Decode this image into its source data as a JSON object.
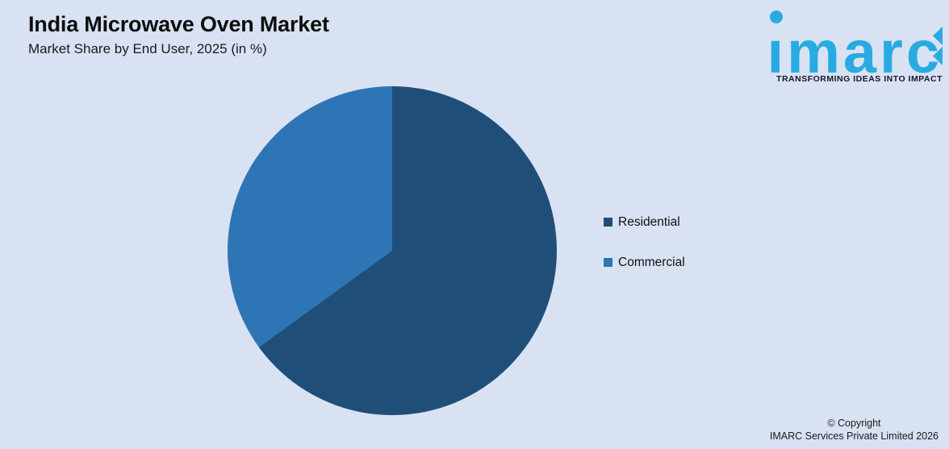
{
  "page": {
    "background_color": "#D9E2F2"
  },
  "header": {
    "title": "India Microwave Oven Market",
    "subtitle": "Market Share by End User, 2025 (in %)"
  },
  "logo": {
    "wordmark": "imarc",
    "tagline": "TRANSFORMING IDEAS INTO IMPACT",
    "brand_color": "#29ABE2"
  },
  "chart_data": {
    "type": "pie",
    "title": "India Microwave Oven Market",
    "subtitle": "Market Share by End User, 2025 (in %)",
    "categories": [
      "Residential",
      "Commercial"
    ],
    "values": [
      65,
      35
    ],
    "unit": "%",
    "colors": [
      "#1F4E79",
      "#2E75B6"
    ],
    "start_angle_deg": 0,
    "direction": "clockwise",
    "data_labels": false,
    "legend_position": "right"
  },
  "legend": {
    "items": [
      {
        "label": "Residential",
        "color": "#1F4E79"
      },
      {
        "label": "Commercial",
        "color": "#2E75B6"
      }
    ]
  },
  "footer": {
    "copyright_line1": "© Copyright",
    "copyright_line2": "IMARC Services Private Limited 2026"
  }
}
